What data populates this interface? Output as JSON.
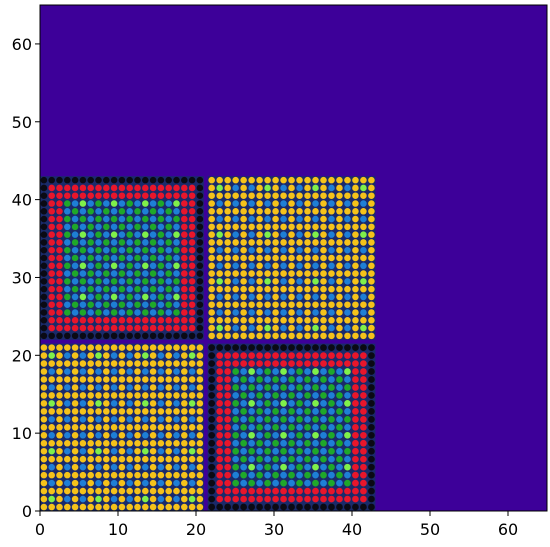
{
  "chart_data": {
    "type": "heatmap",
    "title": "",
    "xlabel": "",
    "ylabel": "",
    "xlim": [
      0,
      65
    ],
    "ylim": [
      0,
      65
    ],
    "xticks": [
      "0",
      "10",
      "20",
      "30",
      "40",
      "50",
      "60"
    ],
    "yticks": [
      "0",
      "10",
      "20",
      "30",
      "40",
      "50",
      "60"
    ],
    "grid": false,
    "background_color": "#3d0099",
    "palette": {
      "black": "#0a0a14",
      "red": "#e8162b",
      "green": "#1fa82a",
      "blue": "#1e7fd6",
      "yellow": "#f5c21a",
      "lightgreen": "#7ff04a",
      "background": "#3d0099"
    },
    "blocks": [
      {
        "x": [
          0,
          21
        ],
        "y": [
          22,
          43
        ],
        "pattern": "nested-core"
      },
      {
        "x": [
          21.5,
          43
        ],
        "y": [
          22,
          43
        ],
        "pattern": "lattice"
      },
      {
        "x": [
          0,
          21
        ],
        "y": [
          0,
          21.5
        ],
        "pattern": "lattice"
      },
      {
        "x": [
          21.5,
          43
        ],
        "y": [
          0,
          21.5
        ],
        "pattern": "nested-core"
      }
    ]
  }
}
